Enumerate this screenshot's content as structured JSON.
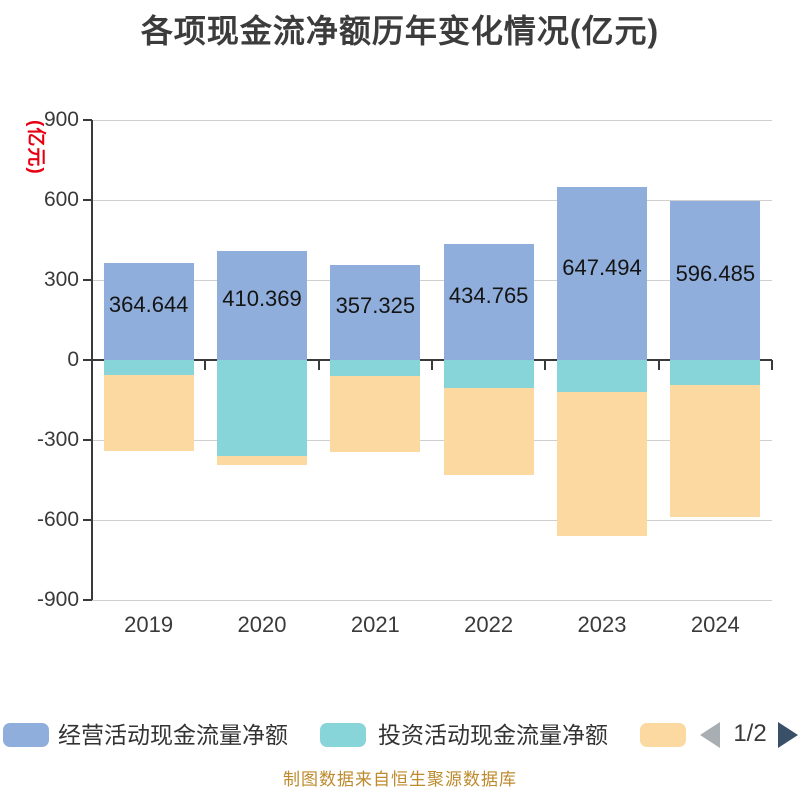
{
  "title": "各项现金流净额历年变化情况(亿元)",
  "y_axis": {
    "unit_label": "(亿元)",
    "ticks": [
      900,
      600,
      300,
      0,
      -300,
      -600,
      -900
    ]
  },
  "chart_data": {
    "type": "bar",
    "stacked": true,
    "title": "各项现金流净额历年变化情况(亿元)",
    "categories": [
      "2019",
      "2020",
      "2021",
      "2022",
      "2023",
      "2024"
    ],
    "series": [
      {
        "name": "经营活动现金流量净额",
        "color": "#8FAEDC",
        "values": [
          364.644,
          410.369,
          357.325,
          434.765,
          647.494,
          596.485
        ],
        "data_labels": [
          "364.644",
          "410.369",
          "357.325",
          "434.765",
          "647.494",
          "596.485"
        ]
      },
      {
        "name": "投资活动现金流量净额",
        "color": "#87D5D9",
        "values": [
          -55,
          -360,
          -60,
          -105,
          -120,
          -95
        ],
        "estimated_from_pixels": true
      },
      {
        "name": "",
        "color": "#FCD9A0",
        "values": [
          -285,
          -35,
          -285,
          -325,
          -540,
          -495
        ],
        "estimated_from_pixels": true
      }
    ],
    "ylim": [
      -900,
      900
    ],
    "y_tick_step": 300,
    "grid": true,
    "legend_position": "bottom"
  },
  "legend": {
    "items": [
      {
        "label": "经营活动现金流量净额",
        "color": "#8FAEDC"
      },
      {
        "label": "投资活动现金流量净额",
        "color": "#87D5D9"
      },
      {
        "label": "",
        "color": "#FCD9A0"
      }
    ]
  },
  "pagination": {
    "label": "1/2",
    "prev_icon": "left-triangle",
    "next_icon": "right-triangle"
  },
  "footer": {
    "text": "制图数据来自恒生聚源数据库"
  },
  "colors": {
    "operating_bar": "#8FAEDC",
    "investing_bar": "#87D5D9",
    "third_bar": "#FCD9A0",
    "axis_label_red": "#E60012",
    "text_dark": "#3A3A3A",
    "value_label_text": "#141414",
    "gridline": "#CFCFCF",
    "axis_line": "#3A3A3A",
    "footer_text": "#BD8A2E",
    "pager_prev_arrow": "#A8AEB2",
    "pager_next_arrow": "#3A5068"
  }
}
